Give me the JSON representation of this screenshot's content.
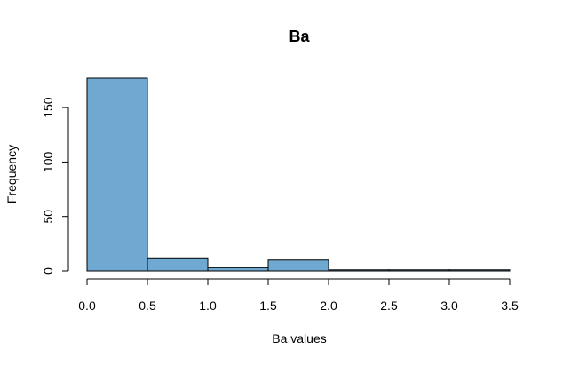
{
  "chart_data": {
    "type": "bar",
    "title": "Ba",
    "xlabel": "Ba values",
    "ylabel": "Frequency",
    "bin_edges": [
      0.0,
      0.5,
      1.0,
      1.5,
      2.0,
      2.5,
      3.0,
      3.5
    ],
    "values": [
      177,
      12,
      3,
      10,
      1,
      1,
      1
    ],
    "xlim": [
      0.0,
      3.5
    ],
    "ylim": [
      0,
      177
    ],
    "x_ticks": [
      "0.0",
      "0.5",
      "1.0",
      "1.5",
      "2.0",
      "2.5",
      "3.0",
      "3.5"
    ],
    "y_ticks": [
      "0",
      "50",
      "100",
      "150"
    ],
    "bar_color": "#6fa8d0",
    "grid": false,
    "legend": "none"
  }
}
